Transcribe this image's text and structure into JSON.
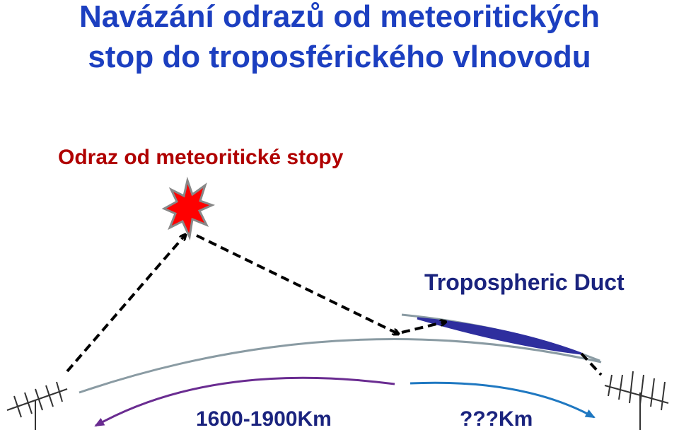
{
  "title": {
    "line1": "Navázání odrazů od meteoritických",
    "line2": "stop do troposférického vlnovodu"
  },
  "subtitle": "Odraz od meteoritické stopy",
  "labels": {
    "duct": "Tropospheric Duct",
    "distance_known": "1600-1900Km",
    "distance_unknown": "???Km"
  }
}
